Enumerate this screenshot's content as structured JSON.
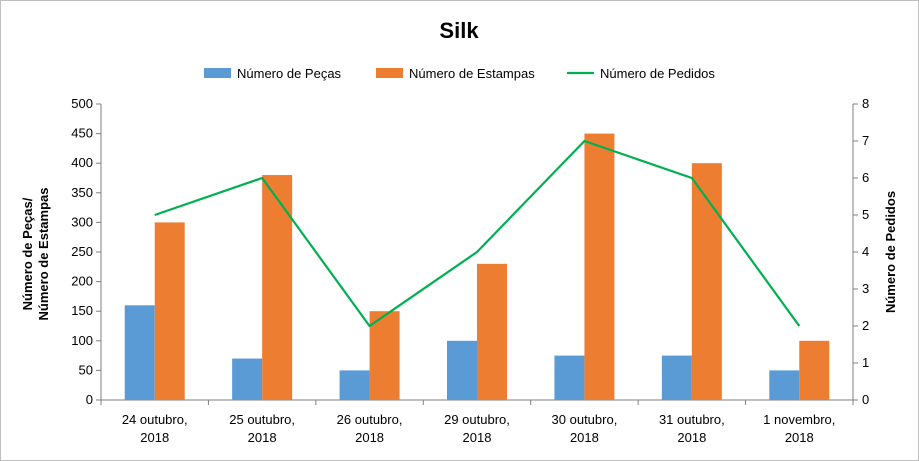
{
  "chart_data": {
    "type": "bar",
    "title": "Silk",
    "categories": [
      [
        "24 outubro,",
        "2018"
      ],
      [
        "25 outubro,",
        "2018"
      ],
      [
        "26 outubro,",
        "2018"
      ],
      [
        "29 outubro,",
        "2018"
      ],
      [
        "30 outubro,",
        "2018"
      ],
      [
        "31 outubro,",
        "2018"
      ],
      [
        "1 novembro,",
        "2018"
      ]
    ],
    "series": [
      {
        "name": "Número de Peças",
        "type": "bar",
        "axis": "left",
        "color": "#5b9bd5",
        "values": [
          160,
          70,
          50,
          100,
          75,
          75,
          50
        ]
      },
      {
        "name": "Número de Estampas",
        "type": "bar",
        "axis": "left",
        "color": "#ed7d31",
        "values": [
          300,
          380,
          150,
          230,
          450,
          400,
          100
        ]
      },
      {
        "name": "Número de Pedidos",
        "type": "line",
        "axis": "right",
        "color": "#00b050",
        "values": [
          5,
          6,
          2,
          4,
          7,
          6,
          2
        ]
      }
    ],
    "ylabel": [
      "Número de Peças/",
      "Número de Estampas"
    ],
    "y2label": "Número de Pedidos",
    "ylim": [
      0,
      500
    ],
    "y_ticks": [
      0,
      50,
      100,
      150,
      200,
      250,
      300,
      350,
      400,
      450,
      500
    ],
    "y2lim": [
      0,
      8
    ],
    "y2_ticks": [
      0,
      1,
      2,
      3,
      4,
      5,
      6,
      7,
      8
    ],
    "grid": false,
    "legend_position": "top"
  }
}
